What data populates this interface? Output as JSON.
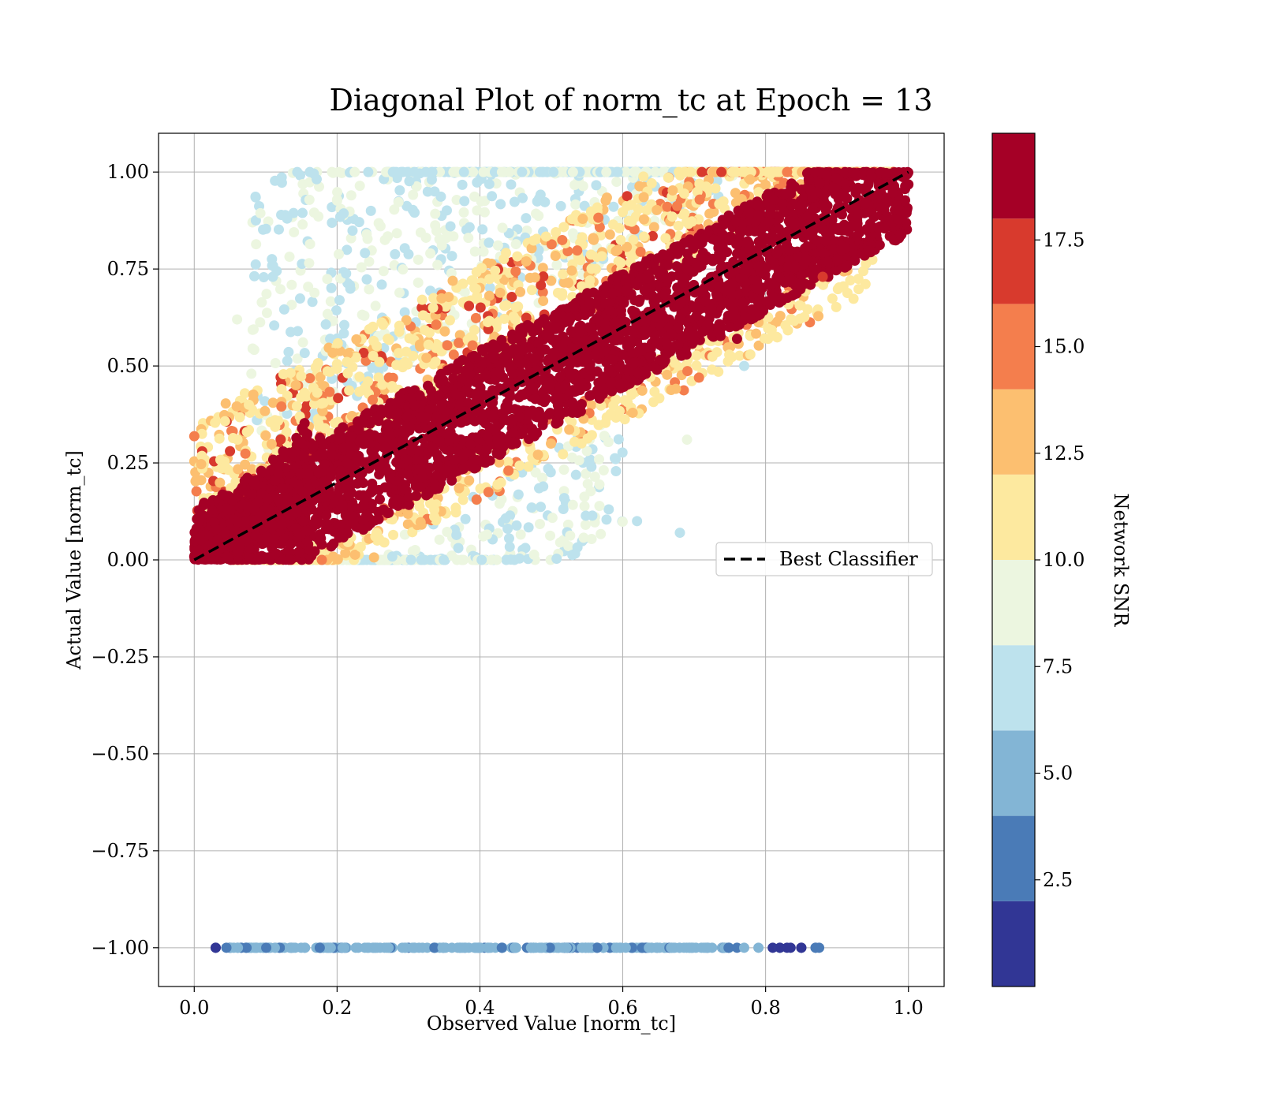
{
  "chart_data": {
    "type": "scatter",
    "title": "Diagonal Plot of norm_tc at Epoch = 13",
    "xlabel": "Observed Value [norm_tc]",
    "ylabel": "Actual Value [norm_tc]",
    "xlim": [
      -0.05,
      1.05
    ],
    "ylim": [
      -1.1,
      1.1
    ],
    "x_ticks": [
      0.0,
      0.2,
      0.4,
      0.6,
      0.8,
      1.0
    ],
    "x_tick_labels": [
      "0.0",
      "0.2",
      "0.4",
      "0.6",
      "0.8",
      "1.0"
    ],
    "y_ticks": [
      1.0,
      0.75,
      0.5,
      0.25,
      0.0,
      -0.25,
      -0.5,
      -0.75,
      -1.0
    ],
    "y_tick_labels": [
      "1.00",
      "0.75",
      "0.50",
      "0.25",
      "0.00",
      "−0.25",
      "−0.50",
      "−0.75",
      "−1.00"
    ],
    "grid": true,
    "legend": {
      "placement": "right",
      "entries": [
        {
          "label": "Best Classifier",
          "style": "black dashed line"
        }
      ]
    },
    "reference_line": {
      "x": [
        0.0,
        1.0
      ],
      "y": [
        0.0,
        1.0
      ],
      "color": "#000000",
      "dash": true
    },
    "colorbar": {
      "label": "Network SNR",
      "boundaries": [
        0,
        2,
        4,
        6,
        8,
        10,
        12,
        14,
        16,
        18,
        20
      ],
      "colors": [
        "#313695",
        "#4a7bb7",
        "#83b5d5",
        "#bde2ed",
        "#ecf6e0",
        "#fde99f",
        "#fcbf70",
        "#f47e4d",
        "#d83a2d",
        "#a50026"
      ],
      "ticks": [
        2.5,
        5.0,
        7.5,
        10.0,
        12.5,
        15.0,
        17.5
      ],
      "tick_labels": [
        "2.5",
        "5.0",
        "7.5",
        "10.0",
        "12.5",
        "15.0",
        "17.5"
      ]
    },
    "series": [
      {
        "snr_band": "high (18-20)",
        "color": "#a50026",
        "distribution": "dense band along y = x",
        "x_range": [
          0.0,
          1.0
        ],
        "y_offset_range": [
          -0.18,
          0.15
        ]
      },
      {
        "snr_band": "medium (10-18)",
        "color": "#fcbf70",
        "distribution": "band edges above diagonal",
        "x_range": [
          0.05,
          0.95
        ],
        "y_offset_range": [
          0.1,
          0.35
        ]
      },
      {
        "snr_band": "low (6-10)",
        "color": "#bde2ed",
        "distribution": "scattered above diagonal",
        "x_range": [
          0.1,
          0.9
        ],
        "y_offset_range": [
          0.2,
          0.75
        ]
      },
      {
        "snr_band": "very low (0-6)",
        "color": "#83b5d5",
        "distribution": "row at y = -1",
        "x_range": [
          0.03,
          0.88
        ],
        "y": -1.0
      }
    ],
    "sample_points": [
      {
        "x": 0.13,
        "y": 0.88,
        "snr": 7
      },
      {
        "x": 0.11,
        "y": 0.73,
        "snr": 7
      },
      {
        "x": 0.06,
        "y": 0.62,
        "snr": 9
      },
      {
        "x": 0.08,
        "y": 0.48,
        "snr": 9
      },
      {
        "x": 0.62,
        "y": 0.1,
        "snr": 7
      },
      {
        "x": 0.68,
        "y": 0.07,
        "snr": 7
      },
      {
        "x": 0.69,
        "y": 0.31,
        "snr": 9
      },
      {
        "x": 0.76,
        "y": 0.57,
        "snr": 18
      },
      {
        "x": 0.77,
        "y": 0.5,
        "snr": 7
      },
      {
        "x": 0.59,
        "y": 0.26,
        "snr": 7
      },
      {
        "x": 0.44,
        "y": 0.23,
        "snr": 15
      },
      {
        "x": 0.88,
        "y": 0.73,
        "snr": 17
      },
      {
        "x": 0.03,
        "y": -1.0,
        "snr": 1
      },
      {
        "x": 0.82,
        "y": -1.0,
        "snr": 1
      },
      {
        "x": 0.85,
        "y": -1.0,
        "snr": 1
      },
      {
        "x": 0.87,
        "y": -1.0,
        "snr": 3
      }
    ]
  }
}
